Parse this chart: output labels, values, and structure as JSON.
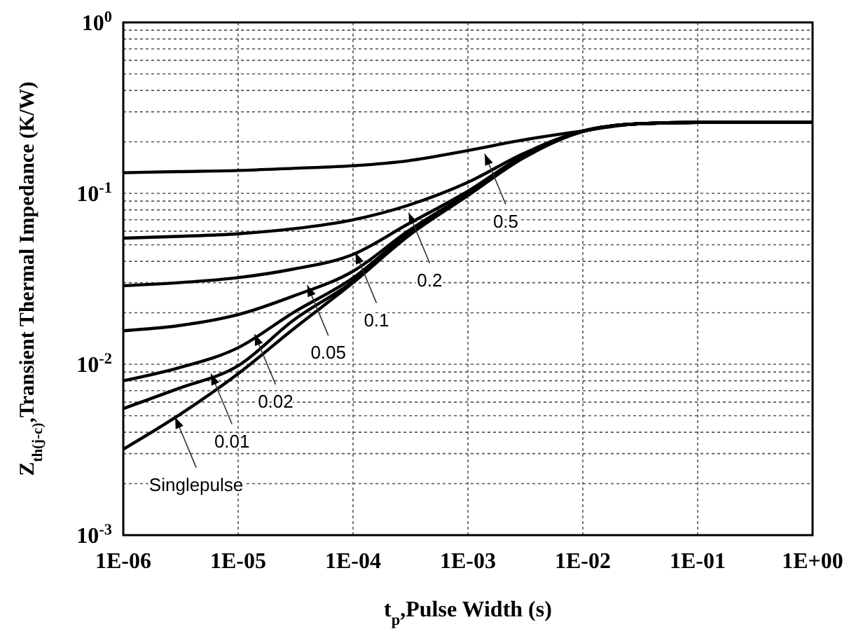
{
  "chart_data": {
    "type": "line",
    "xlabel": "t$_{p}$,Pulse Width (s)",
    "ylabel": "Z$_{th(j-c)}$,Transient Thermal Impedance (K/W)",
    "log": "xy",
    "grid": true,
    "marker": "none",
    "line_style": "solid",
    "x": [
      1e-06,
      3e-06,
      1e-05,
      3e-05,
      0.0001,
      0.0003,
      0.001,
      0.003,
      0.01,
      0.03,
      0.1,
      1
    ],
    "xlim": [
      1e-06,
      1
    ],
    "xticks": [
      {
        "value": 1e-06,
        "label": "1E-06"
      },
      {
        "value": 1e-05,
        "label": "1E-05"
      },
      {
        "value": 0.0001,
        "label": "1E-04"
      },
      {
        "value": 0.001,
        "label": "1E-03"
      },
      {
        "value": 0.01,
        "label": "1E-02"
      },
      {
        "value": 0.1,
        "label": "1E-01"
      },
      {
        "value": 1,
        "label": "1E+00"
      }
    ],
    "ylim": [
      0.001,
      1
    ],
    "yticks": [
      {
        "value": 0.001,
        "label": "10$^{-3}$"
      },
      {
        "value": 0.002,
        "label": null
      },
      {
        "value": 0.003,
        "label": null
      },
      {
        "value": 0.004,
        "label": null
      },
      {
        "value": 0.005,
        "label": null
      },
      {
        "value": 0.006,
        "label": null
      },
      {
        "value": 0.007,
        "label": null
      },
      {
        "value": 0.008,
        "label": null
      },
      {
        "value": 0.009,
        "label": null
      },
      {
        "value": 0.01,
        "label": "10$^{-2}$"
      },
      {
        "value": 0.02,
        "label": null
      },
      {
        "value": 0.03,
        "label": null
      },
      {
        "value": 0.04,
        "label": null
      },
      {
        "value": 0.05,
        "label": null
      },
      {
        "value": 0.06,
        "label": null
      },
      {
        "value": 0.07,
        "label": null
      },
      {
        "value": 0.08,
        "label": null
      },
      {
        "value": 0.09,
        "label": null
      },
      {
        "value": 0.1,
        "label": "10$^{-1}$"
      },
      {
        "value": 0.2,
        "label": null
      },
      {
        "value": 0.3,
        "label": null
      },
      {
        "value": 0.4,
        "label": null
      },
      {
        "value": 0.5,
        "label": null
      },
      {
        "value": 0.6,
        "label": null
      },
      {
        "value": 0.7,
        "label": null
      },
      {
        "value": 0.8,
        "label": null
      },
      {
        "value": 0.9,
        "label": null
      },
      {
        "value": 1,
        "label": "10$^{0}$"
      }
    ],
    "series": [
      {
        "color": "#000000",
        "values": [
          0.132,
          0.134,
          0.136,
          0.14,
          0.145,
          0.155,
          0.178,
          0.205,
          0.232,
          0.255,
          0.26,
          0.26
        ]
      },
      {
        "color": "#000000",
        "values": [
          0.0547,
          0.056,
          0.058,
          0.062,
          0.07,
          0.085,
          0.116,
          0.17,
          0.232,
          0.255,
          0.26,
          0.26
        ]
      },
      {
        "color": "#000000",
        "values": [
          0.0288,
          0.03,
          0.0321,
          0.036,
          0.0439,
          0.066,
          0.103,
          0.165,
          0.23,
          0.255,
          0.26,
          0.26
        ]
      },
      {
        "color": "#000000",
        "values": [
          0.0157,
          0.0168,
          0.0195,
          0.025,
          0.035,
          0.06,
          0.1,
          0.163,
          0.23,
          0.255,
          0.26,
          0.26
        ]
      },
      {
        "color": "#000000",
        "values": [
          0.008,
          0.0095,
          0.0125,
          0.02,
          0.032,
          0.058,
          0.099,
          0.162,
          0.23,
          0.255,
          0.26,
          0.26
        ]
      },
      {
        "color": "#000000",
        "values": [
          0.0055,
          0.0072,
          0.0098,
          0.018,
          0.0305,
          0.057,
          0.098,
          0.161,
          0.23,
          0.255,
          0.26,
          0.26
        ]
      },
      {
        "color": "#000000",
        "values": [
          0.00318,
          0.005,
          0.0088,
          0.016,
          0.03,
          0.056,
          0.097,
          0.16,
          0.23,
          0.255,
          0.26,
          0.26
        ]
      }
    ],
    "annotations": [
      {
        "text": "0.5",
        "x": 0.0014,
        "y": 0.17
      },
      {
        "text": "0.2",
        "x": 0.000305,
        "y": 0.077
      },
      {
        "text": "0.1",
        "x": 0.000105,
        "y": 0.045
      },
      {
        "text": "0.05",
        "x": 4e-05,
        "y": 0.029
      },
      {
        "text": "0.02",
        "x": 1.39e-05,
        "y": 0.015
      },
      {
        "text": "0.01",
        "x": 5.8e-06,
        "y": 0.0088
      },
      {
        "text": "Singlepulse",
        "x": 2.83e-06,
        "y": 0.0049
      }
    ]
  }
}
